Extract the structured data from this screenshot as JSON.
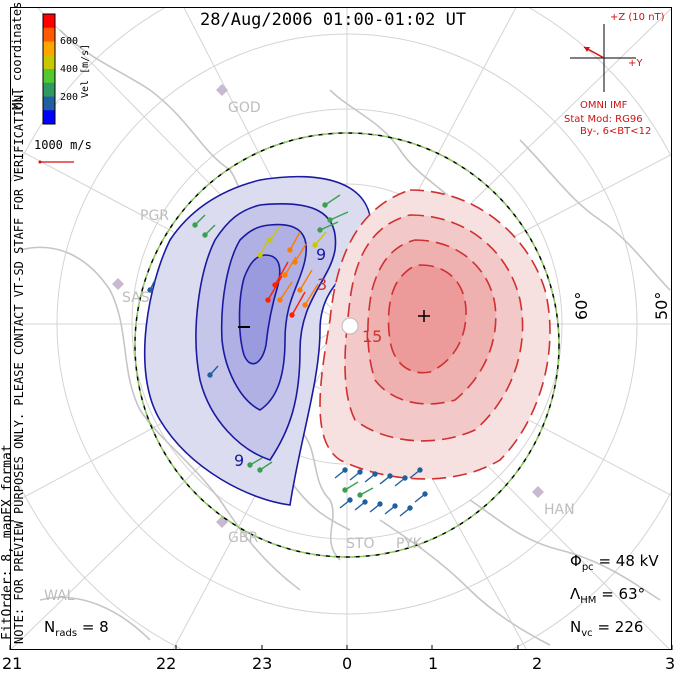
{
  "title": "28/Aug/2006 01:00-01:02 UT",
  "mlt_ticks": [
    "21",
    "22",
    "23",
    "0",
    "1",
    "2",
    "3"
  ],
  "latitude_labels": [
    "60°",
    "50°"
  ],
  "colorbar": {
    "unit_label": "Vel [m/s]",
    "ticks": [
      "600",
      "400",
      "200"
    ],
    "colors": [
      "#ff0000",
      "#ff5a00",
      "#ffa500",
      "#c8c800",
      "#55c830",
      "#2e9a60",
      "#2060a0",
      "#0000ff"
    ]
  },
  "coord_label": "MLT coordinates",
  "vector_scale_label": "1000 m/s",
  "note": "NOTE: FOR PREVIEW PURPOSES ONLY. PLEASE CONTACT VT-SD STAFF FOR VERIFICATION.",
  "fit_label": "FitOrder: 8, mapEX format",
  "imf": {
    "z_label": "+Z (10 nT)",
    "y_label": "+Y",
    "source": "OMNI IMF",
    "stat_mod": "Stat Mod: RG96",
    "condition": "By-, 6<BT<12"
  },
  "stations": [
    "GOD",
    "PGR",
    "SAS",
    "GBR",
    "STO",
    "PYK",
    "HAN",
    "WAL"
  ],
  "contour_labels": [
    "-",
    "+",
    "-9",
    "-3",
    "15",
    "9"
  ],
  "stats": {
    "phi_label": "Φ",
    "phi_sub": "pc",
    "phi_value": "= 48 kV",
    "lambda_label": "Λ",
    "lambda_sub": "HM",
    "lambda_value": "= 63°",
    "nvc_label": "N",
    "nvc_sub": "vc",
    "nvc_value": "= 226",
    "nrads_label": "N",
    "nrads_sub": "rads",
    "nrads_value": "= 8"
  }
}
